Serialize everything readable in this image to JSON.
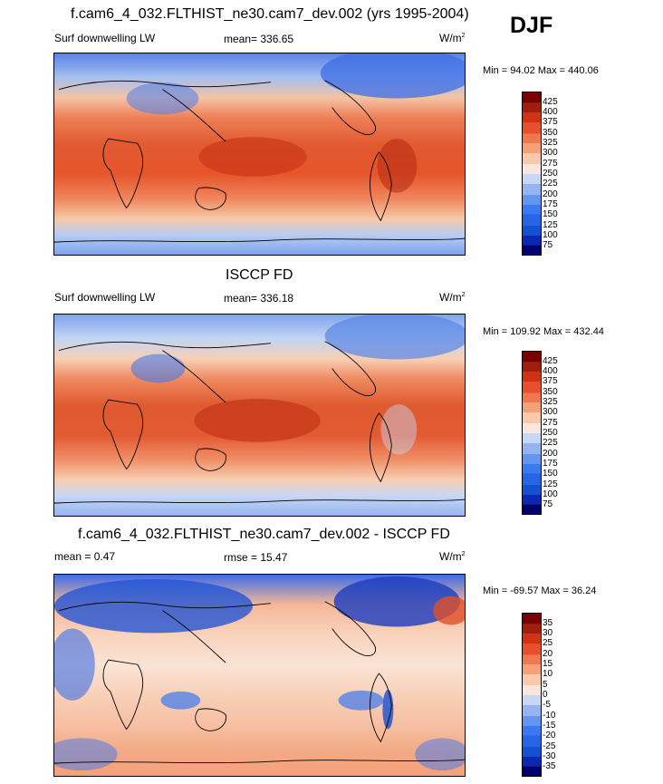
{
  "season": "DJF",
  "panels": [
    {
      "title": "f.cam6_4_032.FLTHIST_ne30.cam7_dev.002 (yrs 1995-2004)",
      "left_label": "Surf downwelling LW",
      "stat_label": "mean= 336.65",
      "units": "W/m",
      "units_sup": "2",
      "minmax": "Min = 94.02 Max = 440.06"
    },
    {
      "title": "ISCCP FD",
      "left_label": "Surf downwelling LW",
      "stat_label": "mean= 336.18",
      "units": "W/m",
      "units_sup": "2",
      "minmax": "Min = 109.92 Max = 432.44"
    },
    {
      "title": "f.cam6_4_032.FLTHIST_ne30.cam7_dev.002 - ISCCP FD",
      "left_label": "mean = 0.47",
      "stat_label": "rmse = 15.47",
      "units": "W/m",
      "units_sup": "2",
      "minmax": "Min = -69.57 Max = 36.24"
    }
  ],
  "chart_data": [
    {
      "type": "heatmap",
      "title": "f.cam6_4_032.FLTHIST_ne30.cam7_dev.002 (yrs 1995-2004)",
      "variable": "Surf downwelling LW",
      "units": "W/m2",
      "mean": 336.65,
      "min": 94.02,
      "max": 440.06,
      "colorbar_levels": [
        75,
        100,
        125,
        150,
        175,
        200,
        225,
        250,
        275,
        300,
        325,
        350,
        375,
        400,
        425
      ],
      "colors": [
        "#00006e",
        "#0a28b4",
        "#1450d2",
        "#2864e6",
        "#3c78f0",
        "#6496f0",
        "#96b4f0",
        "#c8d7f5",
        "#fae6dc",
        "#fac8aa",
        "#f5a078",
        "#f07850",
        "#e6502d",
        "#d23214",
        "#a01e0a",
        "#780000"
      ]
    },
    {
      "type": "heatmap",
      "title": "ISCCP FD",
      "variable": "Surf downwelling LW",
      "units": "W/m2",
      "mean": 336.18,
      "min": 109.92,
      "max": 432.44,
      "colorbar_levels": [
        75,
        100,
        125,
        150,
        175,
        200,
        225,
        250,
        275,
        300,
        325,
        350,
        375,
        400,
        425
      ],
      "colors": [
        "#00006e",
        "#0a28b4",
        "#1450d2",
        "#2864e6",
        "#3c78f0",
        "#6496f0",
        "#96b4f0",
        "#c8d7f5",
        "#fae6dc",
        "#fac8aa",
        "#f5a078",
        "#f07850",
        "#e6502d",
        "#d23214",
        "#a01e0a",
        "#780000"
      ]
    },
    {
      "type": "heatmap",
      "title": "f.cam6_4_032.FLTHIST_ne30.cam7_dev.002 - ISCCP FD",
      "mean": 0.47,
      "rmse": 15.47,
      "units": "W/m2",
      "min": -69.57,
      "max": 36.24,
      "colorbar_levels": [
        -35,
        -30,
        -25,
        -20,
        -15,
        -10,
        -5,
        0,
        5,
        10,
        15,
        20,
        25,
        30,
        35
      ],
      "colors": [
        "#00006e",
        "#0a28b4",
        "#1450d2",
        "#2864e6",
        "#3c78f0",
        "#6496f0",
        "#96b4f0",
        "#c8d7f5",
        "#fae6dc",
        "#fac8aa",
        "#f5a078",
        "#f07850",
        "#e6502d",
        "#d23214",
        "#a01e0a",
        "#780000"
      ]
    }
  ]
}
